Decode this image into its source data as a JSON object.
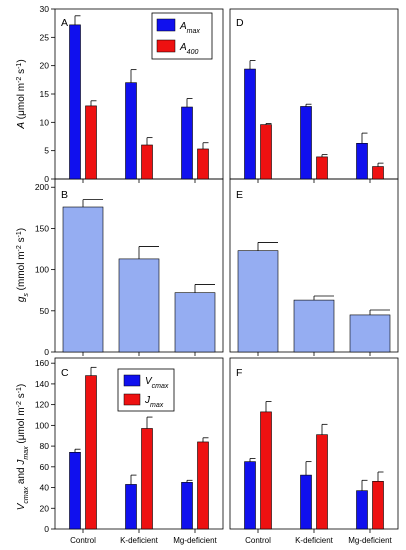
{
  "colors": {
    "a_max": "#1010ee",
    "a_400": "#ee1111",
    "gs": "#95adf2",
    "v_cmax": "#1010ee",
    "j_max": "#ee1111"
  },
  "chart_data": [
    {
      "type": "bar",
      "panel": "A",
      "categories": [
        "Control",
        "K-deficient",
        "Mg-deficient"
      ],
      "ylim": [
        0,
        30
      ],
      "yticks": [
        0,
        5,
        10,
        15,
        20,
        25,
        30
      ],
      "ylabel": "A (μmol m⁻² s⁻¹)",
      "legend": "top-right",
      "series": [
        {
          "name": "Amax",
          "values": [
            27.2,
            17.0,
            12.7
          ],
          "errors": [
            1.6,
            2.3,
            1.5
          ]
        },
        {
          "name": "A400",
          "values": [
            12.9,
            6.0,
            5.3
          ],
          "errors": [
            0.9,
            1.3,
            1.1
          ]
        }
      ]
    },
    {
      "type": "bar",
      "panel": "D",
      "categories": [
        "Control",
        "K-deficient",
        "Mg-deficient"
      ],
      "ylim": [
        0,
        30
      ],
      "series": [
        {
          "name": "Amax",
          "values": [
            19.4,
            12.8,
            6.3
          ],
          "errors": [
            1.5,
            0.4,
            1.8
          ]
        },
        {
          "name": "A400",
          "values": [
            9.6,
            3.9,
            2.2
          ],
          "errors": [
            0.2,
            0.4,
            0.6
          ]
        }
      ]
    },
    {
      "type": "bar",
      "panel": "B",
      "categories": [
        "Control",
        "K-deficient",
        "Mg-deficient"
      ],
      "ylim": [
        0,
        210
      ],
      "yticks": [
        0,
        50,
        100,
        150,
        200
      ],
      "ylabel": "gs (mmol m⁻² s⁻¹)",
      "series": [
        {
          "name": "gs",
          "values": [
            176,
            113,
            72
          ],
          "errors": [
            9,
            15,
            10
          ]
        }
      ]
    },
    {
      "type": "bar",
      "panel": "E",
      "categories": [
        "Control",
        "K-deficient",
        "Mg-deficient"
      ],
      "ylim": [
        0,
        210
      ],
      "series": [
        {
          "name": "gs",
          "values": [
            123,
            63,
            45
          ],
          "errors": [
            10,
            5,
            6
          ]
        }
      ]
    },
    {
      "type": "bar",
      "panel": "C",
      "categories": [
        "Control",
        "K-deficient",
        "Mg-deficient"
      ],
      "ylim": [
        0,
        165
      ],
      "yticks": [
        0,
        20,
        40,
        60,
        80,
        100,
        120,
        140,
        160
      ],
      "ylabel": "Vcmax and Jmax (μmol m⁻² s⁻¹)",
      "legend": "top-center",
      "series": [
        {
          "name": "Vcmax",
          "values": [
            74,
            43,
            45
          ],
          "errors": [
            3,
            9,
            2
          ]
        },
        {
          "name": "Jmax",
          "values": [
            148,
            97,
            84
          ],
          "errors": [
            8,
            11,
            4
          ]
        }
      ]
    },
    {
      "type": "bar",
      "panel": "F",
      "categories": [
        "Control",
        "K-deficient",
        "Mg-deficient"
      ],
      "ylim": [
        0,
        165
      ],
      "series": [
        {
          "name": "Vcmax",
          "values": [
            65,
            52,
            37
          ],
          "errors": [
            3,
            13,
            10
          ]
        },
        {
          "name": "Jmax",
          "values": [
            113,
            91,
            46
          ],
          "errors": [
            10,
            10,
            9
          ]
        }
      ]
    }
  ]
}
